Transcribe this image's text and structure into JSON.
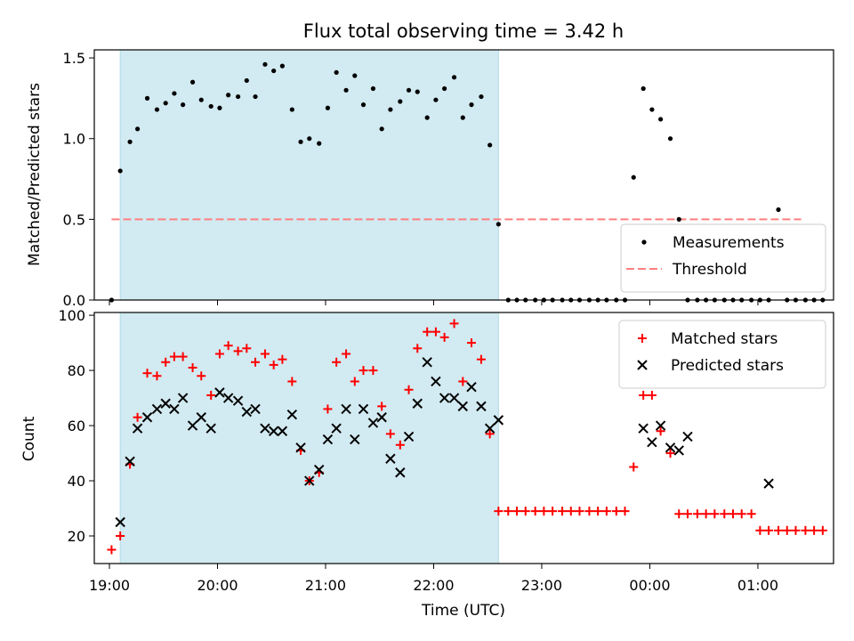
{
  "chart_data": [
    {
      "type": "scatter",
      "title": "Flux total observing time = 3.42 h",
      "ylabel": "Matched/Predicted stars",
      "ylim": [
        0,
        1.55
      ],
      "yticks": [
        "0.0",
        "0.5",
        "1.0",
        "1.5"
      ],
      "ytick_values": [
        0,
        0.5,
        1.0,
        1.5
      ],
      "xlim": [
        -0.14,
        6.7
      ],
      "shade": [
        0.1,
        3.6
      ],
      "shade_color": "#add8e6",
      "threshold": {
        "name": "Threshold",
        "value": 0.5,
        "x": [
          0.02,
          6.4
        ],
        "color": "#ff7f7f"
      },
      "legend": {
        "position": "bottom-right",
        "entries": [
          "Measurements",
          "Threshold"
        ]
      },
      "series": [
        {
          "name": "Measurements",
          "color": "#000000",
          "x": [
            0.02,
            0.1,
            0.19,
            0.26,
            0.35,
            0.44,
            0.52,
            0.6,
            0.68,
            0.77,
            0.85,
            0.94,
            1.02,
            1.1,
            1.19,
            1.27,
            1.35,
            1.44,
            1.52,
            1.6,
            1.69,
            1.77,
            1.85,
            1.94,
            2.02,
            2.1,
            2.19,
            2.27,
            2.35,
            2.44,
            2.52,
            2.6,
            2.69,
            2.77,
            2.85,
            2.94,
            3.02,
            3.1,
            3.19,
            3.27,
            3.35,
            3.44,
            3.52,
            3.6,
            3.69,
            3.77,
            3.85,
            3.94,
            4.02,
            4.1,
            4.19,
            4.27,
            4.35,
            4.44,
            4.52,
            4.6,
            4.69,
            4.77,
            4.85,
            4.94,
            5.02,
            5.1,
            5.19,
            5.27,
            5.35,
            5.44,
            5.52,
            5.6,
            5.69,
            5.77,
            5.85,
            5.94,
            6.02,
            6.1,
            6.19,
            6.27,
            6.35,
            6.44,
            6.52,
            6.6
          ],
          "y": [
            0.0,
            0.8,
            0.98,
            1.06,
            1.25,
            1.18,
            1.22,
            1.28,
            1.21,
            1.35,
            1.24,
            1.2,
            1.19,
            1.27,
            1.26,
            1.36,
            1.26,
            1.46,
            1.42,
            1.45,
            1.18,
            0.98,
            1.0,
            0.97,
            1.19,
            1.41,
            1.3,
            1.39,
            1.21,
            1.31,
            1.06,
            1.18,
            1.23,
            1.3,
            1.29,
            1.13,
            1.24,
            1.31,
            1.38,
            1.13,
            1.21,
            1.26,
            0.96,
            0.47,
            0.0,
            0.0,
            0.0,
            0.0,
            0.0,
            0.0,
            0.0,
            0.0,
            0.0,
            0.0,
            0.0,
            0.0,
            0.0,
            0.0,
            0.76,
            1.31,
            1.18,
            1.12,
            1.0,
            0.5,
            0.0,
            0.0,
            0.0,
            0.0,
            0.0,
            0.0,
            0.0,
            0.0,
            0.0,
            0.0,
            0.56,
            0.0,
            0.0,
            0.0,
            0.0,
            0.0
          ]
        }
      ]
    },
    {
      "type": "scatter",
      "title": "",
      "xlabel": "Time (UTC)",
      "ylabel": "Count",
      "ylim": [
        10,
        101
      ],
      "yticks": [
        "20",
        "40",
        "60",
        "80",
        "100"
      ],
      "ytick_values": [
        20,
        40,
        60,
        80,
        100
      ],
      "xlim": [
        -0.14,
        6.7
      ],
      "xticks": [
        "19:00",
        "20:00",
        "21:00",
        "22:00",
        "23:00",
        "00:00",
        "01:00"
      ],
      "xtick_values": [
        0,
        1,
        2,
        3,
        4,
        5,
        6
      ],
      "shade": [
        0.1,
        3.6
      ],
      "shade_color": "#add8e6",
      "legend": {
        "position": "top-right",
        "entries": [
          "Matched stars",
          "Predicted stars"
        ]
      },
      "series": [
        {
          "name": "Matched stars",
          "marker": "+",
          "color": "#ff0000",
          "x": [
            0.02,
            0.1,
            0.19,
            0.26,
            0.35,
            0.44,
            0.52,
            0.6,
            0.68,
            0.77,
            0.85,
            0.94,
            1.02,
            1.1,
            1.19,
            1.27,
            1.35,
            1.44,
            1.52,
            1.6,
            1.69,
            1.77,
            1.85,
            1.94,
            2.02,
            2.1,
            2.19,
            2.27,
            2.35,
            2.44,
            2.52,
            2.6,
            2.69,
            2.77,
            2.85,
            2.94,
            3.02,
            3.1,
            3.19,
            3.27,
            3.35,
            3.44,
            3.52,
            3.6,
            3.69,
            3.77,
            3.85,
            3.94,
            4.02,
            4.1,
            4.19,
            4.27,
            4.35,
            4.44,
            4.52,
            4.6,
            4.69,
            4.77,
            4.85,
            4.94,
            5.02,
            5.1,
            5.19,
            5.27,
            5.35,
            5.44,
            5.52,
            5.6,
            5.69,
            5.77,
            5.85,
            5.94,
            6.02,
            6.1,
            6.19,
            6.27,
            6.35,
            6.44,
            6.52,
            6.6
          ],
          "y": [
            15,
            20,
            46,
            63,
            79,
            78,
            83,
            85,
            85,
            81,
            78,
            71,
            86,
            89,
            87,
            88,
            83,
            86,
            82,
            84,
            76,
            51,
            40,
            43,
            66,
            83,
            86,
            76,
            80,
            80,
            67,
            57,
            53,
            73,
            88,
            94,
            94,
            92,
            97,
            76,
            90,
            84,
            57,
            29,
            29,
            29,
            29,
            29,
            29,
            29,
            29,
            29,
            29,
            29,
            29,
            29,
            29,
            29,
            45,
            71,
            71,
            58,
            50,
            28,
            28,
            28,
            28,
            28,
            28,
            28,
            28,
            28,
            22,
            22,
            22,
            22,
            22,
            22,
            22,
            22
          ]
        },
        {
          "name": "Predicted stars",
          "marker": "x",
          "color": "#000000",
          "x": [
            0.1,
            0.19,
            0.26,
            0.35,
            0.44,
            0.52,
            0.6,
            0.68,
            0.77,
            0.85,
            0.94,
            1.02,
            1.1,
            1.19,
            1.27,
            1.35,
            1.44,
            1.52,
            1.6,
            1.69,
            1.77,
            1.85,
            1.94,
            2.02,
            2.1,
            2.19,
            2.27,
            2.35,
            2.44,
            2.52,
            2.6,
            2.69,
            2.77,
            2.85,
            2.94,
            3.02,
            3.1,
            3.19,
            3.27,
            3.35,
            3.44,
            3.52,
            3.6,
            4.94,
            5.02,
            5.1,
            5.19,
            5.27,
            5.35,
            6.1
          ],
          "y": [
            25,
            47,
            59,
            63,
            66,
            68,
            66,
            70,
            60,
            63,
            59,
            72,
            70,
            69,
            65,
            66,
            59,
            58,
            58,
            64,
            52,
            40,
            44,
            55,
            59,
            66,
            55,
            66,
            61,
            63,
            48,
            43,
            56,
            68,
            83,
            76,
            70,
            70,
            67,
            74,
            67,
            59,
            62,
            59,
            54,
            60,
            52,
            51,
            56,
            39
          ]
        }
      ]
    }
  ]
}
